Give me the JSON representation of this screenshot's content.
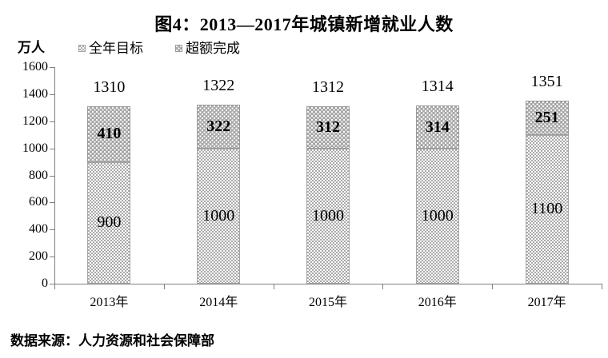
{
  "title": "图4：2013—2017年城镇新增就业人数",
  "y_axis": {
    "unit": "万人"
  },
  "legend": {
    "items": [
      {
        "label": "全年目标",
        "swatch": "white-with-gray-dots"
      },
      {
        "label": "超额完成",
        "swatch": "gray-with-white-dots"
      }
    ]
  },
  "source": "数据来源：人力资源和社会保障部",
  "colors": {
    "excess_fill": "#a8a8a8",
    "target_fill": "#ffffff",
    "pattern_dot": "#8c8c8c",
    "axis_line": "#808080",
    "text": "#000000"
  },
  "chart_data": {
    "type": "bar",
    "stacked": true,
    "title": "图4：2013—2017年城镇新增就业人数",
    "categories": [
      "2013年",
      "2014年",
      "2015年",
      "2016年",
      "2017年"
    ],
    "series": [
      {
        "name": "全年目标",
        "values": [
          900,
          1000,
          1000,
          1000,
          1100
        ]
      },
      {
        "name": "超额完成",
        "values": [
          410,
          322,
          312,
          314,
          251
        ]
      }
    ],
    "totals": [
      1310,
      1322,
      1312,
      1314,
      1351
    ],
    "xlabel": "",
    "ylabel": "万人",
    "ylim": [
      0,
      1600
    ],
    "yticks": [
      0,
      200,
      400,
      600,
      800,
      1000,
      1200,
      1400,
      1600
    ],
    "grid": false,
    "legend_position": "top-left",
    "source_note": "数据来源：人力资源和社会保障部"
  }
}
